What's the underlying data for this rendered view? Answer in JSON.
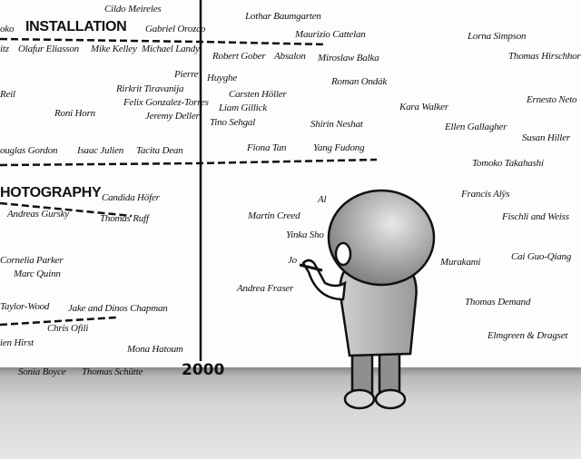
{
  "headings": {
    "installation": "INSTALLATION",
    "photography": "HOTOGRAPHY"
  },
  "year": "2000",
  "names": [
    "Cildo Meireles",
    "Gabriel Orozco",
    "oko",
    "Lothar Baumgarten",
    "Maurizio Cattelan",
    "Lorna Simpson",
    "Thomas Hirschhorn",
    "itz",
    "Olafur Eliasson",
    "Mike Kelley",
    "Michael Landy",
    "Robert Gober",
    "Absalon",
    "Miroslaw Balka",
    "Pierre",
    "Huyghe",
    "Rirkrit Tiravanija",
    "Felix Gonzalez-Torres",
    "Jeremy Deller",
    "Carsten Höller",
    "Liam Gillick",
    "Tino Sehgal",
    "Roman Ondák",
    "Kara Walker",
    "Ernesto Neto",
    "Ellen Gallagher",
    "Susan Hiller",
    "Reil",
    "Roni Horn",
    "Shirin Neshat",
    "ouglas Gordon",
    "Isaac Julien",
    "Tacita Dean",
    "Fiona Tan",
    "Yang Fudong",
    "Tomoko Takahashi",
    "Candida Höfer",
    "Andreas Gursky",
    "Thomas Ruff",
    "Francis Alÿs",
    "Fischli and Weiss",
    "Martin Creed",
    "Al",
    "Yinka Sho",
    "Jo",
    "Murakami",
    "Cai Guo-Qiang",
    "Cornelia Parker",
    "Marc Quinn",
    "Andrea Fraser",
    "Thomas Demand",
    "Taylor-Wood",
    "Jake and Dinos Chapman",
    "Chris Ofili",
    "ien Hirst",
    "Elmgreen & Dragset",
    "Mona Hatoum",
    "Sonia Boyce",
    "Thomas Schütte"
  ]
}
